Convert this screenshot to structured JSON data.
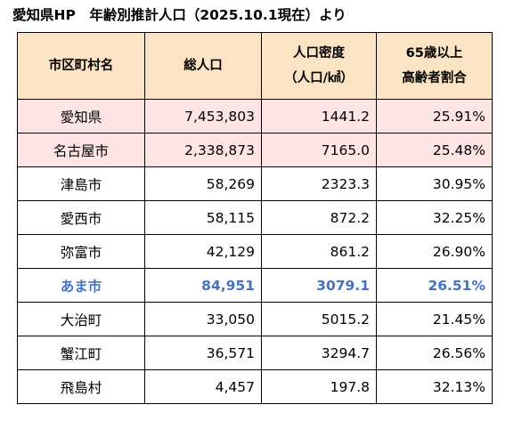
{
  "title": "愛知県HP　年齢別推計人口（2025.10.1現在）より",
  "header": {
    "name": "市区町村名",
    "population": "総人口",
    "density_line1": "人口密度",
    "density_line2": "（人口/㎢）",
    "elderly_line1": "65歳以上",
    "elderly_line2": "高齢者割合"
  },
  "rows": [
    {
      "name": "愛知県",
      "population": "7,453,803",
      "density": "1441.2",
      "elderly": "25.91%"
    },
    {
      "name": "名古屋市",
      "population": "2,338,873",
      "density": "7165.0",
      "elderly": "25.48%"
    },
    {
      "name": "津島市",
      "population": "58,269",
      "density": "2323.3",
      "elderly": "30.95%"
    },
    {
      "name": "愛西市",
      "population": "58,115",
      "density": "872.2",
      "elderly": "32.25%"
    },
    {
      "name": "弥富市",
      "population": "42,129",
      "density": "861.2",
      "elderly": "26.90%"
    },
    {
      "name": "あま市",
      "population": "84,951",
      "density": "3079.1",
      "elderly": "26.51%"
    },
    {
      "name": "大治町",
      "population": "33,050",
      "density": "5015.2",
      "elderly": "21.45%"
    },
    {
      "name": "蟹江町",
      "population": "36,571",
      "density": "3294.7",
      "elderly": "26.56%"
    },
    {
      "name": "飛島村",
      "population": "4,457",
      "density": "197.8",
      "elderly": "32.13%"
    }
  ],
  "colors": {
    "header_bg": "#fbe4c3",
    "pink_row_bg": "#fde5e5",
    "highlight_text": "#4472c4"
  }
}
